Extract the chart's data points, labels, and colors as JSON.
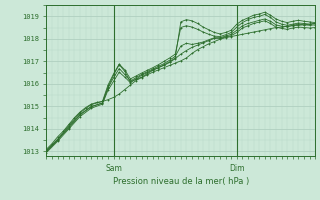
{
  "title": "",
  "xlabel": "Pression niveau de la mer( hPa )",
  "ylabel": "",
  "ylim": [
    1012.8,
    1019.5
  ],
  "xlim": [
    0,
    96
  ],
  "yticks": [
    1013,
    1014,
    1015,
    1016,
    1017,
    1018,
    1019
  ],
  "x_day_labels": [
    [
      "Sam",
      24
    ],
    [
      "Dim",
      68
    ]
  ],
  "bg_color": "#cce8d8",
  "plot_bg_color": "#cce8d8",
  "grid_color_major": "#aad4c0",
  "grid_color_minor": "#b8dcc8",
  "line_color": "#2d6e2d",
  "marker_color": "#2d6e2d",
  "axis_color": "#2d6e2d",
  "text_color": "#2d6e2d",
  "series": [
    [
      0,
      1013.1,
      2,
      1013.35,
      4,
      1013.65,
      6,
      1013.9,
      8,
      1014.2,
      10,
      1014.5,
      12,
      1014.75,
      14,
      1014.95,
      16,
      1015.1,
      18,
      1015.18,
      20,
      1015.22,
      22,
      1015.3,
      24,
      1015.4,
      26,
      1015.55,
      28,
      1015.75,
      30,
      1015.95,
      32,
      1016.15,
      34,
      1016.28,
      36,
      1016.4,
      38,
      1016.52,
      40,
      1016.62,
      42,
      1016.72,
      44,
      1016.82,
      46,
      1016.92,
      48,
      1017.02,
      50,
      1017.15,
      52,
      1017.35,
      54,
      1017.52,
      56,
      1017.65,
      58,
      1017.78,
      60,
      1017.88,
      62,
      1017.98,
      64,
      1018.05,
      66,
      1018.1,
      68,
      1018.15,
      70,
      1018.2,
      72,
      1018.25,
      74,
      1018.3,
      76,
      1018.35,
      78,
      1018.4,
      80,
      1018.45,
      82,
      1018.5,
      84,
      1018.52,
      86,
      1018.55,
      88,
      1018.58,
      90,
      1018.6,
      92,
      1018.62,
      94,
      1018.65,
      96,
      1018.68
    ],
    [
      0,
      1013.0,
      4,
      1013.5,
      8,
      1014.1,
      12,
      1014.65,
      16,
      1015.0,
      20,
      1015.15,
      22,
      1015.85,
      24,
      1016.4,
      26,
      1016.85,
      28,
      1016.55,
      30,
      1016.1,
      32,
      1016.2,
      34,
      1016.3,
      36,
      1016.45,
      38,
      1016.6,
      40,
      1016.72,
      42,
      1016.85,
      44,
      1016.98,
      46,
      1017.15,
      48,
      1018.75,
      50,
      1018.85,
      52,
      1018.8,
      54,
      1018.68,
      56,
      1018.52,
      58,
      1018.4,
      60,
      1018.28,
      62,
      1018.22,
      64,
      1018.28,
      66,
      1018.38,
      68,
      1018.65,
      70,
      1018.82,
      72,
      1018.93,
      74,
      1019.05,
      76,
      1019.1,
      78,
      1019.18,
      80,
      1019.05,
      82,
      1018.88,
      84,
      1018.78,
      86,
      1018.72,
      88,
      1018.78,
      90,
      1018.82,
      92,
      1018.78,
      94,
      1018.75,
      96,
      1018.72
    ],
    [
      0,
      1013.05,
      4,
      1013.55,
      8,
      1014.15,
      12,
      1014.72,
      16,
      1015.08,
      20,
      1015.22,
      22,
      1015.95,
      24,
      1016.45,
      26,
      1016.88,
      28,
      1016.62,
      30,
      1016.22,
      32,
      1016.35,
      34,
      1016.48,
      36,
      1016.6,
      38,
      1016.72,
      40,
      1016.85,
      42,
      1017.0,
      44,
      1017.15,
      46,
      1017.32,
      48,
      1018.5,
      50,
      1018.58,
      52,
      1018.52,
      54,
      1018.42,
      56,
      1018.3,
      58,
      1018.2,
      60,
      1018.12,
      62,
      1018.1,
      64,
      1018.18,
      66,
      1018.28,
      68,
      1018.52,
      70,
      1018.72,
      72,
      1018.85,
      74,
      1018.95,
      76,
      1019.0,
      78,
      1019.08,
      80,
      1018.95,
      82,
      1018.75,
      84,
      1018.65,
      86,
      1018.6,
      88,
      1018.65,
      90,
      1018.7,
      92,
      1018.68,
      94,
      1018.65,
      96,
      1018.68
    ],
    [
      0,
      1012.95,
      4,
      1013.45,
      8,
      1014.0,
      12,
      1014.55,
      16,
      1014.92,
      20,
      1015.1,
      22,
      1015.72,
      24,
      1016.12,
      26,
      1016.52,
      28,
      1016.3,
      30,
      1016.05,
      32,
      1016.22,
      34,
      1016.38,
      36,
      1016.5,
      38,
      1016.62,
      40,
      1016.72,
      42,
      1016.82,
      44,
      1016.95,
      46,
      1017.12,
      48,
      1017.32,
      50,
      1017.48,
      52,
      1017.62,
      54,
      1017.72,
      56,
      1017.82,
      58,
      1017.92,
      60,
      1018.02,
      62,
      1018.02,
      64,
      1018.08,
      66,
      1018.14,
      68,
      1018.28,
      70,
      1018.48,
      72,
      1018.58,
      74,
      1018.68,
      76,
      1018.74,
      78,
      1018.8,
      80,
      1018.68,
      82,
      1018.52,
      84,
      1018.46,
      86,
      1018.42,
      88,
      1018.48,
      90,
      1018.52,
      92,
      1018.5,
      94,
      1018.48,
      96,
      1018.5
    ],
    [
      0,
      1013.02,
      4,
      1013.52,
      8,
      1014.05,
      12,
      1014.62,
      16,
      1014.98,
      20,
      1015.15,
      22,
      1015.82,
      24,
      1016.28,
      26,
      1016.68,
      28,
      1016.42,
      30,
      1016.12,
      32,
      1016.28,
      34,
      1016.42,
      36,
      1016.54,
      38,
      1016.66,
      40,
      1016.78,
      42,
      1016.9,
      44,
      1017.05,
      46,
      1017.22,
      48,
      1017.68,
      50,
      1017.8,
      52,
      1017.75,
      54,
      1017.8,
      56,
      1017.86,
      58,
      1017.96,
      60,
      1018.05,
      62,
      1018.05,
      64,
      1018.12,
      66,
      1018.2,
      68,
      1018.38,
      70,
      1018.58,
      72,
      1018.68,
      76,
      1018.82,
      78,
      1018.88,
      80,
      1018.78,
      82,
      1018.62,
      84,
      1018.56,
      86,
      1018.54,
      88,
      1018.6,
      90,
      1018.65,
      92,
      1018.62,
      94,
      1018.6,
      96,
      1018.62
    ]
  ]
}
